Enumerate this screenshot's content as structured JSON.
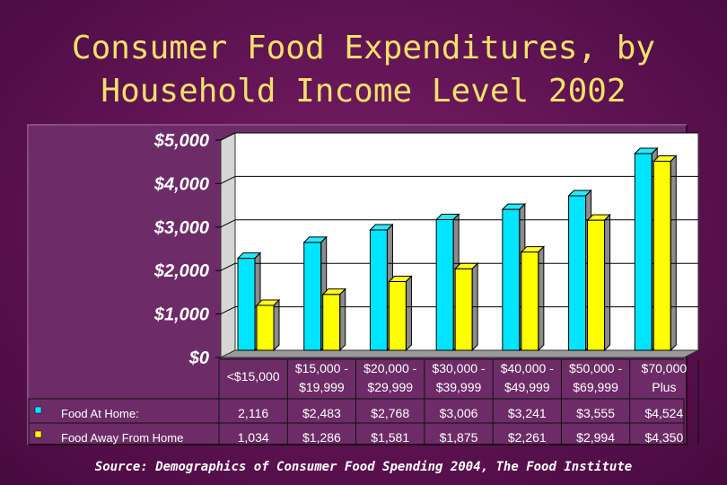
{
  "title": {
    "line1": "Consumer Food Expenditures, by",
    "line2": "Household Income Level 2002"
  },
  "source": "Source: Demographics of Consumer Food Spending 2004, The Food Institute",
  "colors": {
    "food_at_home": "#00e5ff",
    "food_away": "#ffff00",
    "background": "#5e1352",
    "title": "#f2e06a"
  },
  "chart_data": {
    "type": "bar",
    "title": "Consumer Food Expenditures, by Household Income Level 2002",
    "categories": [
      [
        "<$15,000"
      ],
      [
        "$15,000 -",
        "$19,999"
      ],
      [
        "$20,000 -",
        "$29,999"
      ],
      [
        "$30,000 -",
        "$39,999"
      ],
      [
        "$40,000 -",
        "$49,999"
      ],
      [
        "$50,000 -",
        "$69,999"
      ],
      [
        "$70,000",
        "Plus"
      ]
    ],
    "series": [
      {
        "name": "Food At Home:",
        "values": [
          2116,
          2483,
          2768,
          3006,
          3241,
          3555,
          4524
        ],
        "labels": [
          "2,116",
          "$2,483",
          "$2,768",
          "$3,006",
          "$3,241",
          "$3,555",
          "$4,524"
        ]
      },
      {
        "name": "Food Away From Home",
        "values": [
          1034,
          1286,
          1581,
          1875,
          2261,
          2994,
          4350
        ],
        "labels": [
          "1,034",
          "$1,286",
          "$1,581",
          "$1,875",
          "$2,261",
          "$2,994",
          "$4,350"
        ]
      }
    ],
    "yticks": [
      "$0",
      "$1,000",
      "$2,000",
      "$3,000",
      "$4,000",
      "$5,000"
    ],
    "ylim": [
      0,
      5000
    ],
    "xlabel": "",
    "ylabel": "",
    "grid": true,
    "legend": "data-table"
  }
}
